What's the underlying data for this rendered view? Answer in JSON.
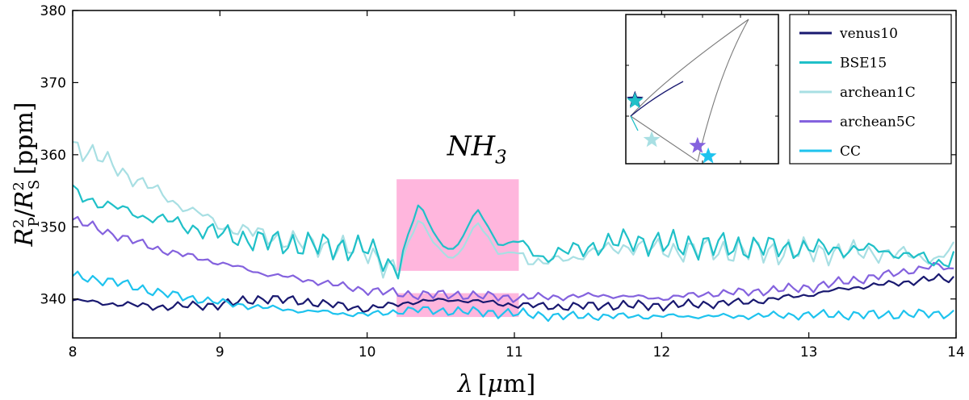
{
  "chart_data": {
    "type": "line",
    "xlim": [
      8,
      14
    ],
    "ylim": [
      334.6,
      380
    ],
    "x_ticks": [
      "8",
      "9",
      "10",
      "11",
      "12",
      "13",
      "14"
    ],
    "y_ticks": [
      "340",
      "350",
      "360",
      "370",
      "380"
    ],
    "grid": false,
    "legend_position": "top-right",
    "series": [
      {
        "name": "venus10",
        "color": "#191970",
        "points": [
          [
            8.0,
            339.8
          ],
          [
            8.3,
            339.3
          ],
          [
            8.6,
            338.9
          ],
          [
            9.0,
            339.2
          ],
          [
            9.3,
            340.1
          ],
          [
            9.6,
            339.6
          ],
          [
            10.0,
            338.6
          ],
          [
            10.3,
            339.6
          ],
          [
            10.6,
            339.9
          ],
          [
            11.0,
            339.2
          ],
          [
            11.3,
            338.9
          ],
          [
            11.6,
            339.1
          ],
          [
            12.0,
            339.1
          ],
          [
            12.3,
            339.3
          ],
          [
            12.6,
            339.6
          ],
          [
            13.0,
            340.6
          ],
          [
            13.3,
            341.6
          ],
          [
            13.6,
            342.2
          ],
          [
            13.85,
            342.8
          ],
          [
            14.0,
            342.8
          ]
        ]
      },
      {
        "name": "BSE15",
        "color": "#20c0c8",
        "points": [
          [
            8.0,
            354.8
          ],
          [
            8.3,
            352.5
          ],
          [
            8.6,
            351.0
          ],
          [
            9.0,
            349.0
          ],
          [
            9.3,
            348.0
          ],
          [
            9.6,
            347.5
          ],
          [
            10.0,
            347.0
          ],
          [
            10.2,
            344.0
          ],
          [
            10.35,
            353.2
          ],
          [
            10.5,
            347.5
          ],
          [
            10.6,
            346.8
          ],
          [
            10.75,
            352.5
          ],
          [
            10.9,
            347.3
          ],
          [
            11.0,
            348.0
          ],
          [
            11.2,
            345.8
          ],
          [
            11.5,
            347.2
          ],
          [
            11.8,
            348.2
          ],
          [
            12.0,
            347.6
          ],
          [
            12.5,
            347.3
          ],
          [
            13.0,
            347.0
          ],
          [
            13.5,
            346.8
          ],
          [
            13.9,
            345.0
          ],
          [
            14.0,
            346.3
          ]
        ]
      },
      {
        "name": "archean1C",
        "color": "#a8dfe3",
        "points": [
          [
            8.0,
            361.5
          ],
          [
            8.3,
            358.2
          ],
          [
            8.6,
            354.5
          ],
          [
            9.0,
            350.2
          ],
          [
            9.3,
            348.8
          ],
          [
            9.6,
            347.6
          ],
          [
            10.0,
            346.7
          ],
          [
            10.2,
            343.6
          ],
          [
            10.35,
            351.2
          ],
          [
            10.5,
            346.5
          ],
          [
            10.6,
            345.4
          ],
          [
            10.75,
            350.8
          ],
          [
            10.9,
            346.0
          ],
          [
            11.0,
            346.6
          ],
          [
            11.2,
            344.8
          ],
          [
            11.5,
            346.4
          ],
          [
            11.8,
            347.4
          ],
          [
            12.0,
            346.8
          ],
          [
            12.5,
            346.7
          ],
          [
            13.0,
            346.6
          ],
          [
            13.5,
            346.4
          ],
          [
            13.9,
            345.6
          ],
          [
            14.0,
            347.4
          ]
        ]
      },
      {
        "name": "archean5C",
        "color": "#8462de",
        "points": [
          [
            8.0,
            351.0
          ],
          [
            8.3,
            348.8
          ],
          [
            8.6,
            346.8
          ],
          [
            9.0,
            345.0
          ],
          [
            9.3,
            343.5
          ],
          [
            9.6,
            342.6
          ],
          [
            10.0,
            341.2
          ],
          [
            10.3,
            340.6
          ],
          [
            10.6,
            340.6
          ],
          [
            11.0,
            340.2
          ],
          [
            11.3,
            340.3
          ],
          [
            11.6,
            340.5
          ],
          [
            12.0,
            340.1
          ],
          [
            12.3,
            340.7
          ],
          [
            12.6,
            341.0
          ],
          [
            13.0,
            341.6
          ],
          [
            13.3,
            342.6
          ],
          [
            13.6,
            343.6
          ],
          [
            13.85,
            344.6
          ],
          [
            14.0,
            344.0
          ]
        ]
      },
      {
        "name": "CC",
        "color": "#1ec3ee",
        "points": [
          [
            8.0,
            343.2
          ],
          [
            8.3,
            342.3
          ],
          [
            8.6,
            340.8
          ],
          [
            9.0,
            339.5
          ],
          [
            9.3,
            338.8
          ],
          [
            9.6,
            338.3
          ],
          [
            10.0,
            337.8
          ],
          [
            10.3,
            338.5
          ],
          [
            10.6,
            338.3
          ],
          [
            11.0,
            338.0
          ],
          [
            11.3,
            337.6
          ],
          [
            11.6,
            337.6
          ],
          [
            12.0,
            337.6
          ],
          [
            12.5,
            337.6
          ],
          [
            13.0,
            337.8
          ],
          [
            13.5,
            337.8
          ],
          [
            14.0,
            338.0
          ]
        ]
      }
    ],
    "highlight_regions": [
      {
        "x": [
          10.2,
          11.03
        ],
        "y": [
          343.9,
          356.6
        ],
        "color": "#ff9ed2"
      },
      {
        "x": [
          10.2,
          11.03
        ],
        "y": [
          337.5,
          340.8
        ],
        "color": "#ff9ed2"
      }
    ],
    "annotation": {
      "base": "NH",
      "sub": "3",
      "x": 10.9,
      "y": 359.9
    },
    "inset": {
      "stars": [
        {
          "series": "venus10",
          "x": 0.06,
          "y": 0.43,
          "color": "#191970"
        },
        {
          "series": "BSE15",
          "x": 0.06,
          "y": 0.42,
          "color": "#20c0c8"
        },
        {
          "series": "archean1C",
          "x": 0.17,
          "y": 0.16,
          "color": "#a8dfe3"
        },
        {
          "series": "archean5C",
          "x": 0.47,
          "y": 0.12,
          "color": "#8462de"
        },
        {
          "series": "CC",
          "x": 0.54,
          "y": 0.05,
          "color": "#1ec3ee"
        }
      ]
    }
  }
}
